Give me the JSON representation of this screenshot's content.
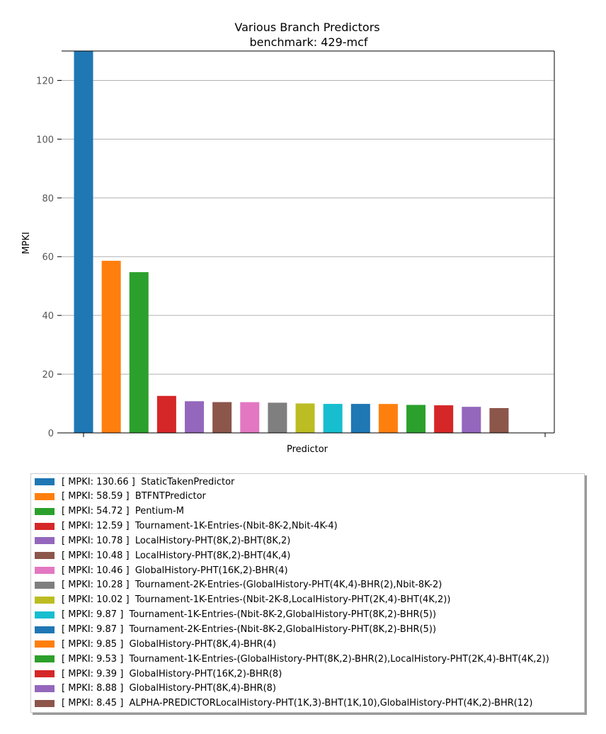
{
  "chart_data": {
    "type": "bar",
    "title": "Various Branch Predictors",
    "subtitle": "benchmark: 429-mcf",
    "xlabel": "Predictor",
    "ylabel": "MPKI",
    "ylim": [
      0,
      130
    ],
    "yticks": [
      0,
      20,
      40,
      60,
      80,
      100,
      120
    ],
    "grid": "y",
    "legend_position": "bottom",
    "categories": [
      "StaticTakenPredictor",
      "BTFNTPredictor",
      "Pentium-M",
      "Tournament-1K-Entries-(Nbit-8K-2,Nbit-4K-4)",
      "LocalHistory-PHT(8K,2)-BHT(8K,2)",
      "LocalHistory-PHT(8K,2)-BHT(4K,4)",
      "GlobalHistory-PHT(16K,2)-BHR(4)",
      "Tournament-2K-Entries-(GlobalHistory-PHT(4K,4)-BHR(2),Nbit-8K-2)",
      "Tournament-1K-Entries-(Nbit-2K-8,LocalHistory-PHT(2K,4)-BHT(4K,2))",
      "Tournament-1K-Entries-(Nbit-8K-2,GlobalHistory-PHT(8K,2)-BHR(5))",
      "Tournament-2K-Entries-(Nbit-8K-2,GlobalHistory-PHT(8K,2)-BHR(5))",
      "GlobalHistory-PHT(8K,4)-BHR(4)",
      "Tournament-1K-Entries-(GlobalHistory-PHT(8K,2)-BHR(2),LocalHistory-PHT(2K,4)-BHT(4K,2))",
      "GlobalHistory-PHT(16K,2)-BHR(8)",
      "GlobalHistory-PHT(8K,4)-BHR(8)",
      "ALPHA-PREDICTORLocalHistory-PHT(1K,3)-BHT(1K,10),GlobalHistory-PHT(4K,2)-BHR(12)"
    ],
    "values": [
      130.66,
      58.59,
      54.72,
      12.59,
      10.78,
      10.48,
      10.46,
      10.28,
      10.02,
      9.87,
      9.87,
      9.85,
      9.53,
      9.39,
      8.88,
      8.45
    ],
    "legend_entries": [
      "[ MPKI: 130.66 ]  StaticTakenPredictor",
      "[ MPKI: 58.59 ]  BTFNTPredictor",
      "[ MPKI: 54.72 ]  Pentium-M",
      "[ MPKI: 12.59 ]  Tournament-1K-Entries-(Nbit-8K-2,Nbit-4K-4)",
      "[ MPKI: 10.78 ]  LocalHistory-PHT(8K,2)-BHT(8K,2)",
      "[ MPKI: 10.48 ]  LocalHistory-PHT(8K,2)-BHT(4K,4)",
      "[ MPKI: 10.46 ]  GlobalHistory-PHT(16K,2)-BHR(4)",
      "[ MPKI: 10.28 ]  Tournament-2K-Entries-(GlobalHistory-PHT(4K,4)-BHR(2),Nbit-8K-2)",
      "[ MPKI: 10.02 ]  Tournament-1K-Entries-(Nbit-2K-8,LocalHistory-PHT(2K,4)-BHT(4K,2))",
      "[ MPKI: 9.87 ]  Tournament-1K-Entries-(Nbit-8K-2,GlobalHistory-PHT(8K,2)-BHR(5))",
      "[ MPKI: 9.87 ]  Tournament-2K-Entries-(Nbit-8K-2,GlobalHistory-PHT(8K,2)-BHR(5))",
      "[ MPKI: 9.85 ]  GlobalHistory-PHT(8K,4)-BHR(4)",
      "[ MPKI: 9.53 ]  Tournament-1K-Entries-(GlobalHistory-PHT(8K,2)-BHR(2),LocalHistory-PHT(2K,4)-BHT(4K,2))",
      "[ MPKI: 9.39 ]  GlobalHistory-PHT(16K,2)-BHR(8)",
      "[ MPKI: 8.88 ]  GlobalHistory-PHT(8K,4)-BHR(8)",
      "[ MPKI: 8.45 ]  ALPHA-PREDICTORLocalHistory-PHT(1K,3)-BHT(1K,10),GlobalHistory-PHT(4K,2)-BHR(12)"
    ],
    "colors": [
      "#1f77b4",
      "#ff7f0e",
      "#2ca02c",
      "#d62728",
      "#9467bd",
      "#8c564b",
      "#e377c2",
      "#7f7f7f",
      "#bcbd22",
      "#17becf",
      "#1f77b4",
      "#ff7f0e",
      "#2ca02c",
      "#d62728",
      "#9467bd",
      "#8c564b"
    ]
  }
}
